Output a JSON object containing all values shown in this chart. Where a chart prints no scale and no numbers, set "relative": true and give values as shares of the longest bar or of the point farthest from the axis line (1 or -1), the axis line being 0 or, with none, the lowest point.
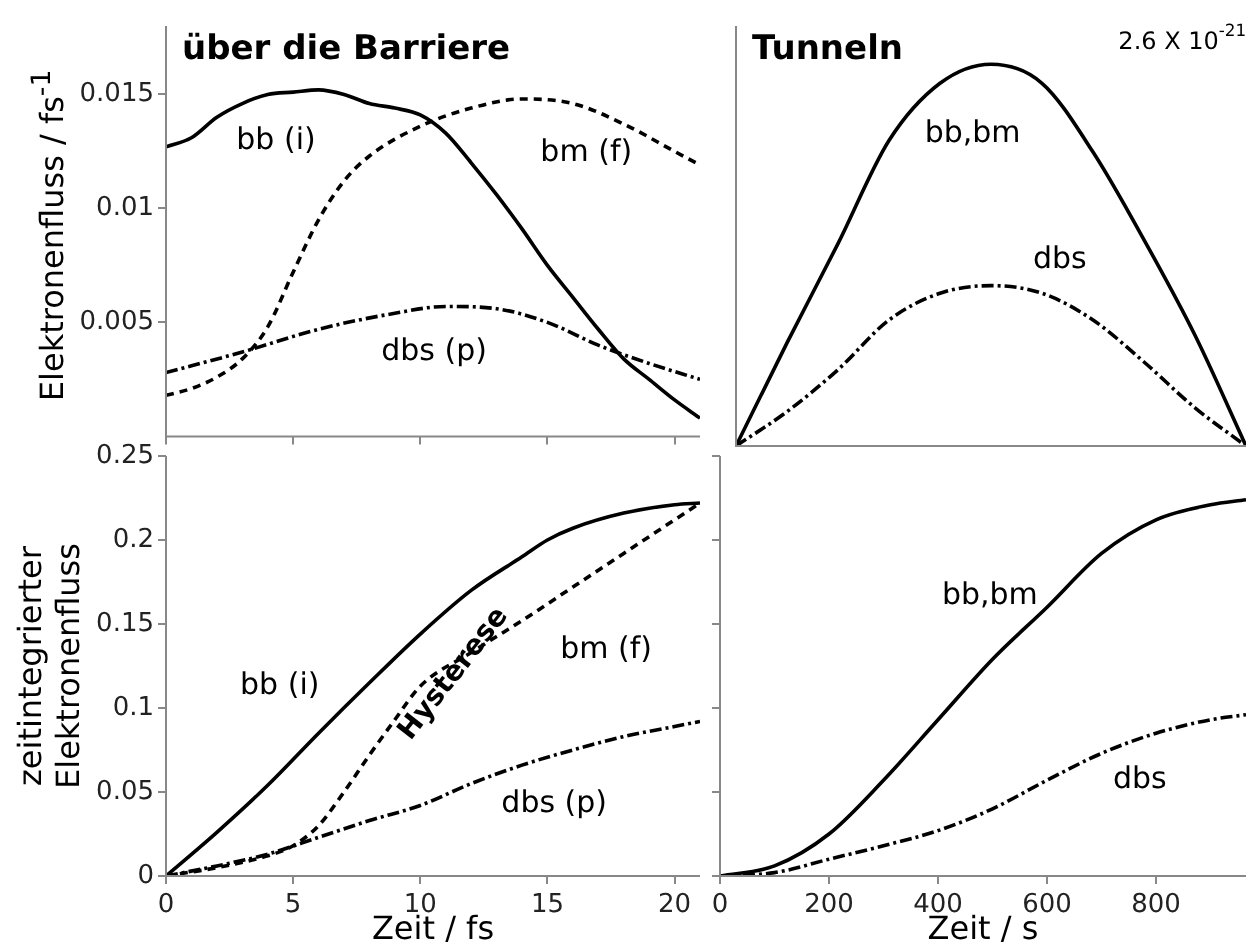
{
  "chart_data": [
    {
      "type": "line",
      "title": "über die Barriere",
      "ylabel": "Elektronenfluss / fs$^{-1}$",
      "xlim": [
        0,
        21
      ],
      "xticks": [
        {
          "value": 0,
          "label": null
        },
        {
          "value": 5,
          "label": null
        },
        {
          "value": 10,
          "label": null
        },
        {
          "value": 15,
          "label": null
        },
        {
          "value": 20,
          "label": null
        }
      ],
      "ylim": [
        0,
        0.018
      ],
      "yticks": [
        0.005,
        0.01,
        0.015
      ],
      "tick_labels": "y",
      "grid": false,
      "legend": false,
      "series": [
        {
          "color": "#000000",
          "line_style": "solid",
          "x": [
            0,
            1,
            2,
            3,
            4,
            5,
            6,
            7,
            8,
            9,
            10,
            11,
            12,
            13,
            14,
            15,
            16,
            17,
            18,
            19,
            20,
            21
          ],
          "values": [
            0.0127,
            0.0131,
            0.014,
            0.0146,
            0.015,
            0.0151,
            0.0152,
            0.015,
            0.0146,
            0.0144,
            0.0141,
            0.0133,
            0.012,
            0.0106,
            0.0091,
            0.0075,
            0.0061,
            0.0047,
            0.0034,
            0.0025,
            0.0016,
            0.0008
          ]
        },
        {
          "color": "#000000",
          "line_style": "dashed",
          "x": [
            0,
            1,
            2,
            3,
            4,
            5,
            6,
            7,
            8,
            10,
            12,
            14,
            16,
            18,
            20,
            21
          ],
          "values": [
            0.0018,
            0.0021,
            0.0026,
            0.0034,
            0.0048,
            0.0072,
            0.0095,
            0.0112,
            0.0123,
            0.0136,
            0.0144,
            0.0148,
            0.0146,
            0.0137,
            0.0125,
            0.0119
          ]
        },
        {
          "color": "#000000",
          "line_style": "dotted",
          "x": [
            0,
            3,
            6,
            9,
            11,
            13,
            15,
            17,
            19,
            21
          ],
          "values": [
            0.0028,
            0.0037,
            0.0047,
            0.0054,
            0.0057,
            0.0056,
            0.005,
            0.004,
            0.0032,
            0.0025
          ]
        }
      ],
      "annotations": [
        "bb (i)",
        "bm (f)",
        "dbs (p)"
      ]
    },
    {
      "type": "line",
      "title": "Tunneln",
      "relative": true,
      "categories": [
        null,
        null,
        null,
        null,
        null,
        null,
        null,
        null,
        null,
        null,
        null
      ],
      "tick_labels": false,
      "grid": false,
      "legend": false,
      "series": [
        {
          "color": "#000000",
          "line_style": "solid",
          "values": [
            0,
            0.27,
            0.53,
            0.8,
            0.95,
            1,
            0.95,
            0.77,
            0.54,
            0.29,
            0
          ]
        },
        {
          "color": "#000000",
          "line_style": "dotted",
          "values": [
            0,
            0.09,
            0.2,
            0.33,
            0.4,
            0.42,
            0.4,
            0.33,
            0.22,
            0.1,
            0
          ]
        }
      ],
      "annotations": [
        "2.6 X 10$^{-21}$",
        "bb,bm",
        "dbs"
      ]
    },
    {
      "type": "line",
      "xlabel": "Zeit / fs",
      "ylabel": "zeitintegrierter\nElektronenfluss",
      "xlim": [
        0,
        21
      ],
      "xticks": [
        0,
        5,
        10,
        15,
        20
      ],
      "ylim": [
        0,
        0.25
      ],
      "yticks": [
        0,
        0.05,
        0.1,
        0.15,
        0.2,
        0.25
      ],
      "grid": false,
      "legend": false,
      "series": [
        {
          "color": "#000000",
          "line_style": "solid",
          "x": [
            0,
            2,
            4,
            6,
            8,
            10,
            12,
            14,
            15,
            16,
            18,
            20,
            21
          ],
          "values": [
            0,
            0.026,
            0.054,
            0.085,
            0.115,
            0.144,
            0.17,
            0.19,
            0.2,
            0.207,
            0.216,
            0.221,
            0.222
          ]
        },
        {
          "color": "#000000",
          "line_style": "dashed",
          "x": [
            0,
            2,
            4,
            5,
            6,
            7,
            8,
            9,
            10,
            12,
            14,
            16,
            18,
            20,
            21
          ],
          "values": [
            0,
            0.005,
            0.012,
            0.018,
            0.03,
            0.05,
            0.072,
            0.093,
            0.113,
            0.133,
            0.152,
            0.172,
            0.192,
            0.212,
            0.222
          ]
        },
        {
          "color": "#000000",
          "line_style": "dotted",
          "x": [
            0,
            2,
            4,
            6,
            8,
            10,
            12,
            14,
            16,
            18,
            20,
            21
          ],
          "values": [
            0,
            0.006,
            0.013,
            0.023,
            0.033,
            0.042,
            0.055,
            0.066,
            0.075,
            0.083,
            0.089,
            0.092
          ]
        }
      ],
      "annotations": [
        "bb (i)",
        "Hysterese",
        "bm (f)",
        "dbs (p)"
      ]
    },
    {
      "type": "line",
      "xlabel": "Zeit / s",
      "xlim": [
        0,
        965
      ],
      "xticks": [
        0,
        200,
        400,
        600,
        800
      ],
      "ylim": [
        0,
        0.25
      ],
      "yticks": [
        {
          "value": 0,
          "label": null
        },
        {
          "value": 0.05,
          "label": null
        },
        {
          "value": 0.1,
          "label": null
        },
        {
          "value": 0.15,
          "label": null
        },
        {
          "value": 0.2,
          "label": null
        },
        {
          "value": 0.25,
          "label": null
        }
      ],
      "tick_labels": "x",
      "grid": false,
      "legend": false,
      "series": [
        {
          "color": "#000000",
          "line_style": "solid",
          "x": [
            0,
            100,
            200,
            300,
            400,
            500,
            600,
            700,
            800,
            900,
            965
          ],
          "values": [
            0,
            0.006,
            0.025,
            0.057,
            0.093,
            0.129,
            0.16,
            0.192,
            0.212,
            0.221,
            0.224
          ]
        },
        {
          "color": "#000000",
          "line_style": "dotted",
          "x": [
            0,
            100,
            200,
            300,
            400,
            500,
            600,
            700,
            800,
            900,
            965
          ],
          "values": [
            0,
            0.002,
            0.01,
            0.018,
            0.027,
            0.04,
            0.057,
            0.073,
            0.085,
            0.093,
            0.096
          ]
        }
      ],
      "annotations": [
        "bb,bm",
        "dbs"
      ]
    }
  ]
}
